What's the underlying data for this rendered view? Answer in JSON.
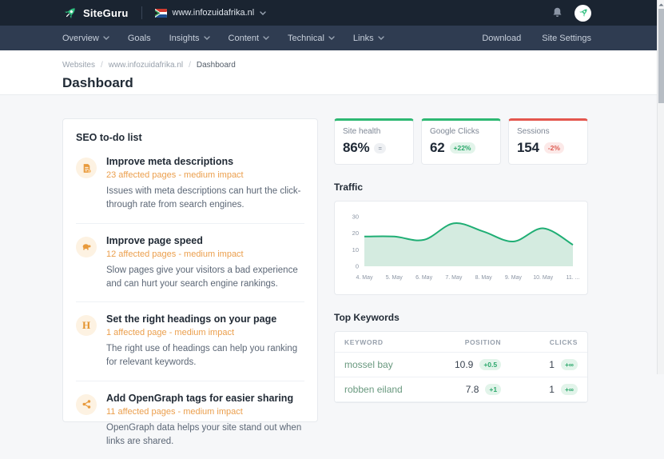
{
  "topbar": {
    "brand": "SiteGuru",
    "site_selector": {
      "domain": "www.infozuidafrika.nl",
      "flag": "south-africa-flag"
    }
  },
  "navbar": {
    "items": [
      {
        "label": "Overview",
        "chevron": true
      },
      {
        "label": "Goals",
        "chevron": false
      },
      {
        "label": "Insights",
        "chevron": true
      },
      {
        "label": "Content",
        "chevron": true
      },
      {
        "label": "Technical",
        "chevron": true
      },
      {
        "label": "Links",
        "chevron": true
      }
    ],
    "right_items": [
      "Download",
      "Site Settings"
    ]
  },
  "breadcrumb": [
    "Websites",
    "www.infozuidafrika.nl",
    "Dashboard"
  ],
  "page_title": "Dashboard",
  "todo": {
    "title": "SEO to-do list",
    "items": [
      {
        "icon": "meta-description-icon",
        "title": "Improve meta descriptions",
        "meta": "23 affected pages - medium impact",
        "description": "Issues with meta descriptions can hurt the click-through rate from search engines."
      },
      {
        "icon": "turtle-icon",
        "title": "Improve page speed",
        "meta": "12 affected pages - medium impact",
        "description": "Slow pages give your visitors a bad experience and can hurt your search engine rankings."
      },
      {
        "icon": "heading-icon",
        "title": "Set the right headings on your page",
        "meta": "1 affected page - medium impact",
        "description": "The right use of headings can help you ranking for relevant keywords."
      },
      {
        "icon": "share-icon",
        "title": "Add OpenGraph tags for easier sharing",
        "meta": "11 affected pages - medium impact",
        "description": "OpenGraph data helps your site stand out when links are shared."
      }
    ]
  },
  "stats": [
    {
      "label": "Site health",
      "value": "86%",
      "badge": "=",
      "trend": "neutral",
      "accent": "green"
    },
    {
      "label": "Google Clicks",
      "value": "62",
      "badge": "+22%",
      "trend": "up",
      "accent": "green"
    },
    {
      "label": "Sessions",
      "value": "154",
      "badge": "-2%",
      "trend": "down",
      "accent": "red"
    }
  ],
  "traffic": {
    "title": "Traffic"
  },
  "chart_data": {
    "type": "area",
    "title": "Traffic",
    "x": [
      "4. May",
      "5. May",
      "6. May",
      "7. May",
      "8. May",
      "9. May",
      "10. May",
      "11. ..."
    ],
    "values": [
      18,
      18,
      16,
      26,
      21,
      15,
      23,
      13
    ],
    "ylim": [
      0,
      30
    ],
    "yticks": [
      0,
      10,
      20,
      30
    ],
    "grid": false,
    "legend": false,
    "line_color": "#1fae74",
    "fill_color": "#d4ebe0"
  },
  "keywords": {
    "title": "Top Keywords",
    "columns": [
      "KEYWORD",
      "POSITION",
      "CLICKS"
    ],
    "rows": [
      {
        "keyword": "mossel bay",
        "position": "10.9",
        "position_change": "+0.5",
        "clicks": "1",
        "clicks_change": "+∞"
      },
      {
        "keyword": "robben eiland",
        "position": "7.8",
        "position_change": "+1",
        "clicks": "1",
        "clicks_change": "+∞"
      }
    ]
  },
  "colors": {
    "topbar_bg": "#1a2431",
    "navbar_bg": "#2f3c51",
    "accent_green": "#2eb873",
    "accent_red": "#e4574e",
    "accent_orange": "#eb9f4d",
    "keyword_link": "#69997f"
  }
}
